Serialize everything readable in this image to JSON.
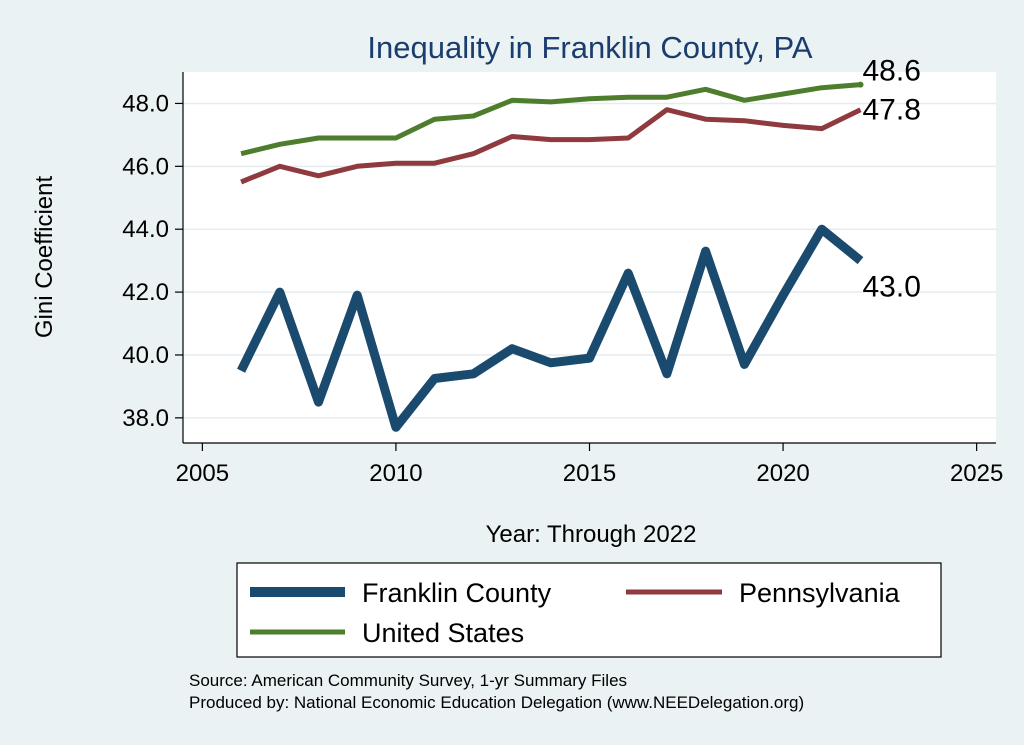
{
  "chart_data": {
    "type": "line",
    "title": "Inequality in Franklin County, PA",
    "xlabel": "Year: Through 2022",
    "ylabel": "Gini Coefficient",
    "xlim": [
      2004.5,
      2025.5
    ],
    "ylim": [
      37.2,
      49.0
    ],
    "xticks": [
      2005,
      2010,
      2015,
      2020,
      2025
    ],
    "yticks": [
      38.0,
      40.0,
      42.0,
      44.0,
      46.0,
      48.0
    ],
    "ytick_labels": [
      "38.0",
      "40.0",
      "42.0",
      "44.0",
      "46.0",
      "48.0"
    ],
    "grid": true,
    "legend_position": "bottom",
    "x": [
      2006,
      2007,
      2008,
      2009,
      2010,
      2011,
      2012,
      2013,
      2014,
      2015,
      2016,
      2017,
      2018,
      2019,
      2020,
      2021,
      2022
    ],
    "series": [
      {
        "name": "Franklin County",
        "color": "#1a4a6e",
        "end_label": "43.0",
        "values": [
          39.5,
          42.0,
          38.5,
          41.9,
          37.7,
          39.25,
          39.4,
          40.2,
          39.75,
          39.9,
          42.6,
          39.4,
          43.3,
          39.7,
          41.9,
          44.0,
          43.0
        ]
      },
      {
        "name": "Pennsylvania",
        "color": "#8e3a3f",
        "end_label": "47.8",
        "values": [
          45.5,
          46.0,
          45.7,
          46.0,
          46.1,
          46.1,
          46.4,
          46.95,
          46.85,
          46.85,
          46.9,
          47.8,
          47.5,
          47.45,
          47.3,
          47.2,
          47.8
        ]
      },
      {
        "name": "United States",
        "color": "#4e7d2e",
        "end_label": "48.6",
        "values": [
          46.4,
          46.7,
          46.9,
          46.9,
          46.9,
          47.5,
          47.6,
          48.1,
          48.05,
          48.15,
          48.2,
          48.2,
          48.45,
          48.1,
          48.3,
          48.5,
          48.6
        ]
      }
    ],
    "annotations": [
      "Source: American Community Survey, 1-yr Summary Files",
      "Produced by: National Economic Education Delegation (www.NEEDelegation.org)"
    ]
  }
}
